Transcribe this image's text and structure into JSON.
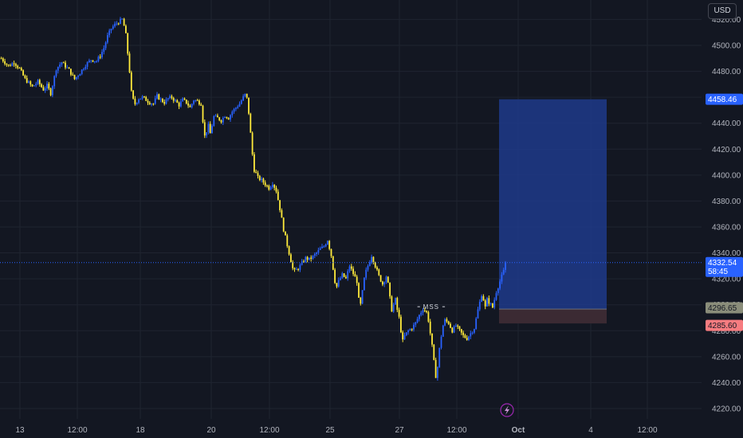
{
  "toolbar": {
    "currency_label": "USD"
  },
  "icons": {
    "flash": "lightning-icon"
  },
  "colors": {
    "background": "#131722",
    "grid": "#1f2430",
    "candle_up": "#2962ff",
    "candle_down": "#ffeb3b",
    "target_zone": "#1e3a8a",
    "stop_zone": "#3b2a33",
    "price_line": "#2962ff",
    "target_badge": "#2962ff",
    "entry_badge": "#8a8d7a",
    "stop_badge": "#f77c80"
  },
  "chart_data": {
    "type": "candlestick",
    "y_axis": {
      "range": [
        4212,
        4535
      ],
      "ticks": [
        4220,
        4240,
        4260,
        4280,
        4300,
        4320,
        4340,
        4360,
        4380,
        4400,
        4420,
        4440,
        4460,
        4480,
        4500,
        4520
      ],
      "tick_labels": [
        "4220.00",
        "4240.00",
        "4260.00",
        "4280.00",
        "4300.00",
        "4320.00",
        "4340.00",
        "4360.00",
        "4380.00",
        "4400.00",
        "4420.00",
        "4440.00",
        "4460.00",
        "4480.00",
        "4500.00",
        "4520.00"
      ]
    },
    "x_axis": {
      "labels": [
        "13",
        "12:00",
        "18",
        "20",
        "12:00",
        "25",
        "27",
        "12:00",
        "Oct",
        "4",
        "12:00"
      ],
      "bold": [
        false,
        false,
        false,
        false,
        false,
        false,
        false,
        false,
        true,
        false,
        false
      ]
    },
    "close_path": [
      [
        0,
        4490
      ],
      [
        4,
        4484
      ],
      [
        7,
        4487
      ],
      [
        10,
        4482
      ],
      [
        13,
        4474
      ],
      [
        17,
        4468
      ],
      [
        20,
        4472
      ],
      [
        23,
        4466
      ],
      [
        25,
        4469
      ],
      [
        27,
        4463
      ],
      [
        30,
        4482
      ],
      [
        33,
        4487
      ],
      [
        37,
        4481
      ],
      [
        40,
        4474
      ],
      [
        43,
        4479
      ],
      [
        46,
        4485
      ],
      [
        49,
        4489
      ],
      [
        52,
        4488
      ],
      [
        54,
        4492
      ],
      [
        56,
        4498
      ],
      [
        58,
        4507
      ],
      [
        60,
        4513
      ],
      [
        62,
        4516
      ],
      [
        64,
        4518
      ],
      [
        66,
        4520
      ],
      [
        67,
        4515
      ],
      [
        68,
        4508
      ],
      [
        69,
        4494
      ],
      [
        70,
        4480
      ],
      [
        71,
        4464
      ],
      [
        72,
        4458
      ],
      [
        73,
        4455
      ],
      [
        75,
        4459
      ],
      [
        77,
        4460
      ],
      [
        79,
        4458
      ],
      [
        81,
        4456
      ],
      [
        83,
        4455
      ],
      [
        85,
        4461
      ],
      [
        87,
        4458
      ],
      [
        89,
        4456
      ],
      [
        91,
        4459
      ],
      [
        93,
        4460
      ],
      [
        95,
        4457
      ],
      [
        97,
        4454
      ],
      [
        99,
        4458
      ],
      [
        101,
        4456
      ],
      [
        103,
        4452
      ],
      [
        105,
        4458
      ],
      [
        107,
        4457
      ],
      [
        109,
        4455
      ],
      [
        110,
        4442
      ],
      [
        111,
        4430
      ],
      [
        112,
        4434
      ],
      [
        113,
        4438
      ],
      [
        114,
        4432
      ],
      [
        116,
        4445
      ],
      [
        118,
        4444
      ],
      [
        120,
        4442
      ],
      [
        122,
        4446
      ],
      [
        124,
        4444
      ],
      [
        126,
        4449
      ],
      [
        128,
        4452
      ],
      [
        130,
        4455
      ],
      [
        132,
        4460
      ],
      [
        133,
        4462
      ],
      [
        134,
        4459
      ],
      [
        135,
        4448
      ],
      [
        136,
        4432
      ],
      [
        137,
        4416
      ],
      [
        138,
        4404
      ],
      [
        140,
        4398
      ],
      [
        142,
        4396
      ],
      [
        144,
        4393
      ],
      [
        146,
        4390
      ],
      [
        148,
        4394
      ],
      [
        150,
        4388
      ],
      [
        152,
        4374
      ],
      [
        153,
        4366
      ],
      [
        154,
        4358
      ],
      [
        155,
        4352
      ],
      [
        156,
        4346
      ],
      [
        157,
        4340
      ],
      [
        158,
        4334
      ],
      [
        159,
        4328
      ],
      [
        160,
        4326
      ],
      [
        162,
        4328
      ],
      [
        164,
        4332
      ],
      [
        166,
        4336
      ],
      [
        168,
        4335
      ],
      [
        170,
        4337
      ],
      [
        172,
        4340
      ],
      [
        174,
        4343
      ],
      [
        176,
        4345
      ],
      [
        178,
        4350
      ],
      [
        180,
        4338
      ],
      [
        181,
        4328
      ],
      [
        182,
        4318
      ],
      [
        183,
        4314
      ],
      [
        184,
        4318
      ],
      [
        186,
        4323
      ],
      [
        188,
        4320
      ],
      [
        190,
        4330
      ],
      [
        192,
        4324
      ],
      [
        194,
        4318
      ],
      [
        195,
        4304
      ],
      [
        196,
        4300
      ],
      [
        197,
        4310
      ],
      [
        198,
        4320
      ],
      [
        199,
        4326
      ],
      [
        200,
        4330
      ],
      [
        202,
        4338
      ],
      [
        204,
        4330
      ],
      [
        206,
        4322
      ],
      [
        208,
        4316
      ],
      [
        210,
        4322
      ],
      [
        211,
        4316
      ],
      [
        212,
        4305
      ],
      [
        213,
        4296
      ],
      [
        214,
        4300
      ],
      [
        215,
        4304
      ],
      [
        216,
        4296
      ],
      [
        217,
        4290
      ],
      [
        218,
        4280
      ],
      [
        219,
        4272
      ],
      [
        220,
        4276
      ],
      [
        222,
        4280
      ],
      [
        224,
        4282
      ],
      [
        226,
        4286
      ],
      [
        228,
        4292
      ],
      [
        230,
        4297
      ],
      [
        232,
        4294
      ],
      [
        233,
        4288
      ],
      [
        234,
        4278
      ],
      [
        235,
        4268
      ],
      [
        236,
        4256
      ],
      [
        237,
        4245
      ],
      [
        238,
        4252
      ],
      [
        239,
        4266
      ],
      [
        240,
        4276
      ],
      [
        241,
        4284
      ],
      [
        242,
        4288
      ],
      [
        244,
        4286
      ],
      [
        246,
        4280
      ],
      [
        248,
        4284
      ],
      [
        250,
        4280
      ],
      [
        252,
        4276
      ],
      [
        254,
        4274
      ],
      [
        256,
        4278
      ],
      [
        258,
        4282
      ],
      [
        260,
        4296
      ],
      [
        262,
        4308
      ],
      [
        263,
        4304
      ],
      [
        264,
        4298
      ],
      [
        265,
        4304
      ],
      [
        266,
        4302
      ],
      [
        268,
        4298
      ],
      [
        270,
        4310
      ],
      [
        272,
        4318
      ],
      [
        273,
        4322
      ],
      [
        274,
        4326
      ],
      [
        275,
        4332.54
      ]
    ],
    "candle_count": 276,
    "last_price": 4332.54,
    "annotation": {
      "label": "MSS",
      "price": 4298.5,
      "from": 227,
      "to": 242
    },
    "position": {
      "target": 4458.46,
      "entry": 4296.65,
      "stop": 4285.6,
      "start": 275,
      "end": 332
    },
    "badges": {
      "target": "4458.46",
      "last": "4332.54",
      "countdown": "58:45",
      "entry": "4296.65",
      "stop": "4285.60"
    }
  }
}
